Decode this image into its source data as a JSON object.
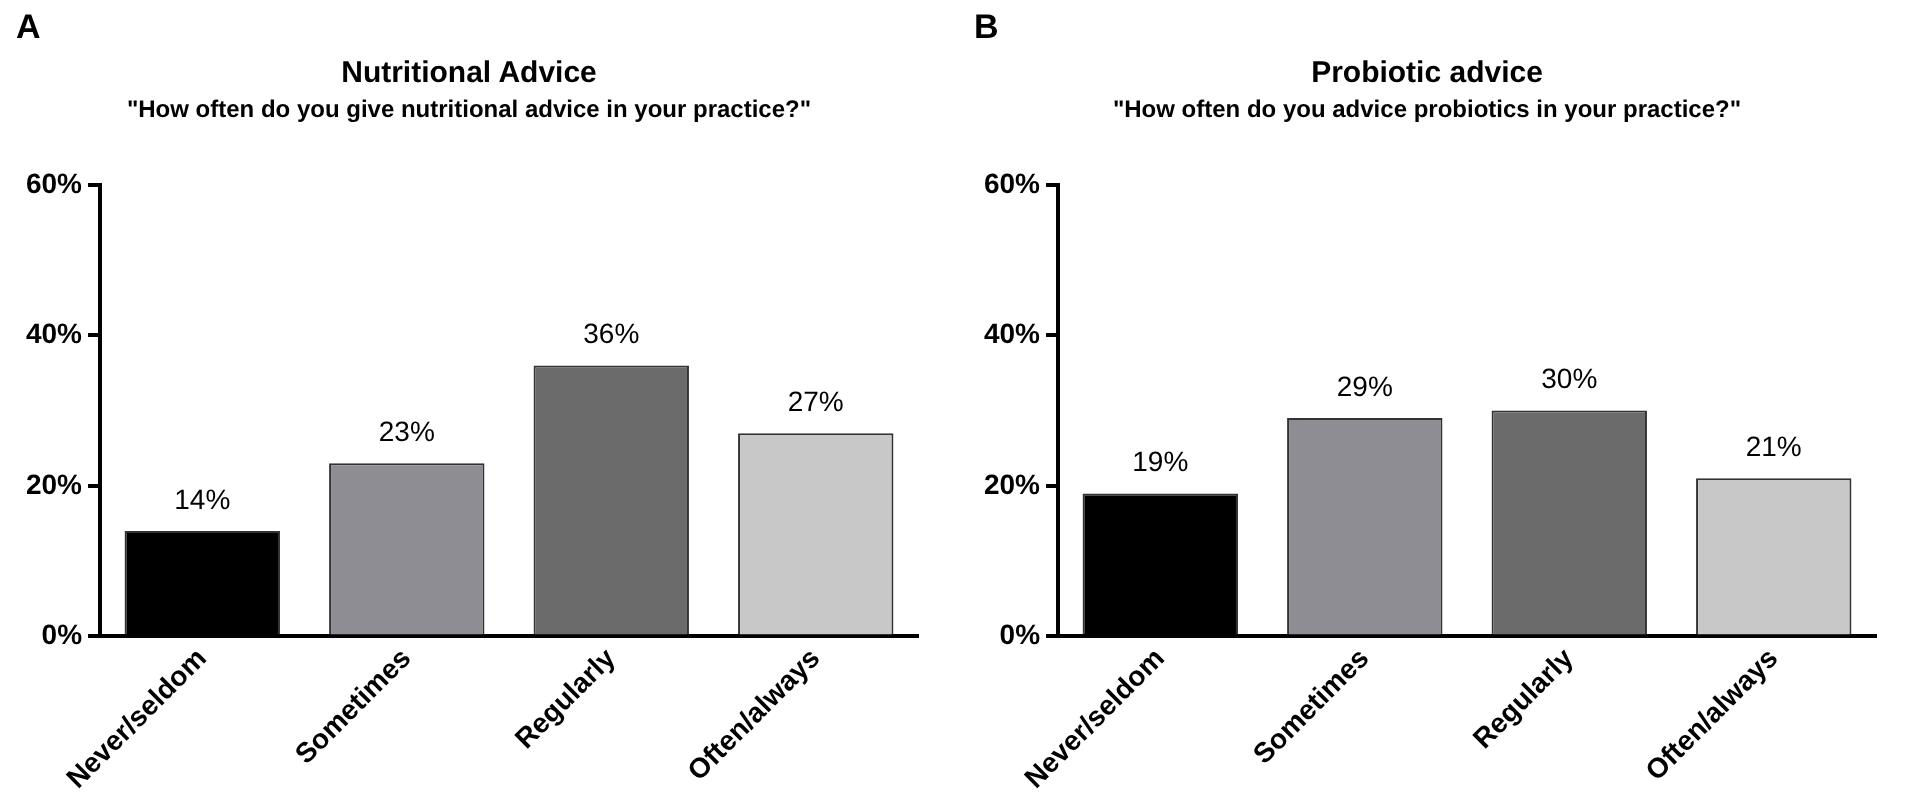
{
  "chart_data": [
    {
      "type": "bar",
      "title": "Nutritional Advice",
      "subtitle": "\"How often do you give nutritional advice in your practice?\"",
      "annotations": [
        "A"
      ],
      "categories": [
        "Never/seldom",
        "Sometimes",
        "Regularly",
        "Often/always"
      ],
      "values": [
        14,
        23,
        36,
        27
      ],
      "colors": [
        "#000000",
        "#8e8d93",
        "#6b6b6b",
        "#c8c8c8"
      ],
      "value_labels": [
        "14%",
        "23%",
        "36%",
        "27%"
      ],
      "ylim": [
        0,
        60
      ],
      "yticks": [
        {
          "value": 0,
          "label": "0%"
        },
        {
          "value": 20,
          "label": "20%"
        },
        {
          "value": 40,
          "label": "40%"
        },
        {
          "value": 60,
          "label": "60%"
        }
      ],
      "grid": false,
      "legend": false
    },
    {
      "type": "bar",
      "title": "Probiotic advice",
      "subtitle": "\"How often do you advice probiotics in your practice?\"",
      "annotations": [
        "B"
      ],
      "categories": [
        "Never/seldom",
        "Sometimes",
        "Regularly",
        "Often/always"
      ],
      "values": [
        19,
        29,
        30,
        21
      ],
      "colors": [
        "#000000",
        "#8e8d93",
        "#6b6b6b",
        "#c8c8c8"
      ],
      "value_labels": [
        "19%",
        "29%",
        "30%",
        "21%"
      ],
      "ylim": [
        0,
        60
      ],
      "yticks": [
        {
          "value": 0,
          "label": "0%"
        },
        {
          "value": 20,
          "label": "20%"
        },
        {
          "value": 40,
          "label": "40%"
        },
        {
          "value": 60,
          "label": "60%"
        }
      ],
      "grid": false,
      "legend": false
    }
  ]
}
